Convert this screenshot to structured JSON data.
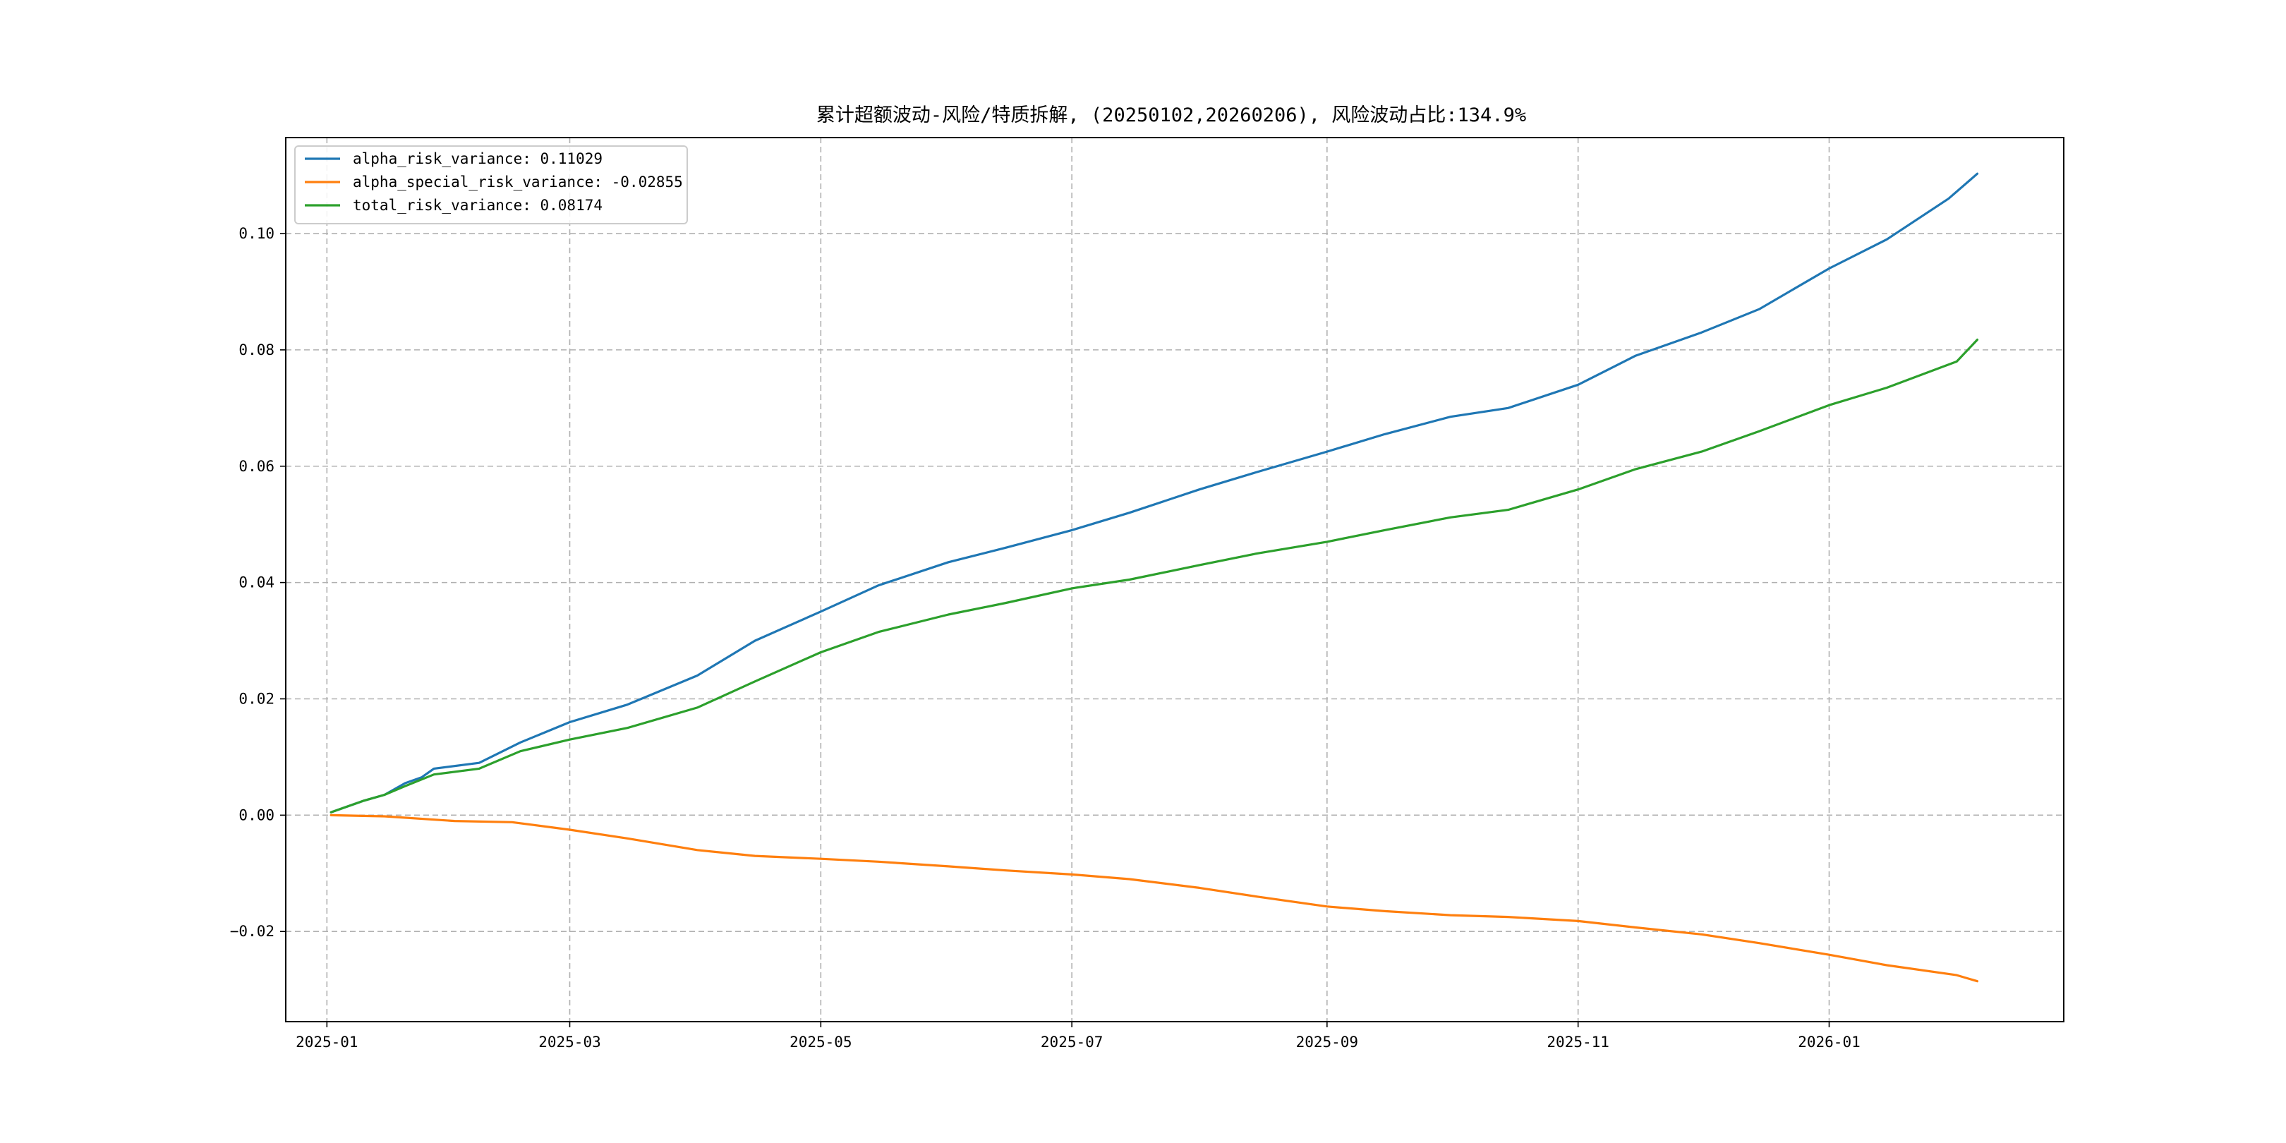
{
  "chart_data": {
    "type": "line",
    "title": "累计超额波动-风险/特质拆解, (20250102,20260206), 风险波动占比:134.9%",
    "xlabel": "",
    "ylabel": "",
    "x_range": [
      "2024-12-22",
      "2026-02-27"
    ],
    "ylim": [
      -0.0355,
      0.1165
    ],
    "grid": true,
    "grid_style": "dashed",
    "legend_position": "upper-left",
    "x_tick_labels": [
      "2025-01",
      "2025-03",
      "2025-05",
      "2025-07",
      "2025-09",
      "2025-11",
      "2026-01"
    ],
    "x_tick_dates": [
      "2025-01-01",
      "2025-03-01",
      "2025-05-01",
      "2025-07-01",
      "2025-09-01",
      "2025-11-01",
      "2026-01-01"
    ],
    "y_ticks": [
      -0.02,
      0.0,
      0.02,
      0.04,
      0.06,
      0.08,
      0.1
    ],
    "y_tick_labels": [
      "−0.02",
      "0.00",
      "0.02",
      "0.04",
      "0.06",
      "0.08",
      "0.10"
    ],
    "series": [
      {
        "name": "alpha_risk_variance",
        "legend_label": "alpha_risk_variance: 0.11029",
        "color": "#1f77b4",
        "points": [
          [
            "2025-01-02",
            0.0005
          ],
          [
            "2025-01-10",
            0.0025
          ],
          [
            "2025-01-15",
            0.0035
          ],
          [
            "2025-01-20",
            0.0055
          ],
          [
            "2025-01-24",
            0.0065
          ],
          [
            "2025-01-27",
            0.008
          ],
          [
            "2025-02-07",
            0.009
          ],
          [
            "2025-02-17",
            0.0125
          ],
          [
            "2025-03-01",
            0.016
          ],
          [
            "2025-03-15",
            0.019
          ],
          [
            "2025-04-01",
            0.024
          ],
          [
            "2025-04-15",
            0.03
          ],
          [
            "2025-05-01",
            0.035
          ],
          [
            "2025-05-15",
            0.0395
          ],
          [
            "2025-06-01",
            0.0435
          ],
          [
            "2025-06-15",
            0.046
          ],
          [
            "2025-07-01",
            0.049
          ],
          [
            "2025-07-15",
            0.052
          ],
          [
            "2025-08-01",
            0.056
          ],
          [
            "2025-08-15",
            0.059
          ],
          [
            "2025-09-01",
            0.0625
          ],
          [
            "2025-09-15",
            0.0655
          ],
          [
            "2025-10-01",
            0.0685
          ],
          [
            "2025-10-15",
            0.07
          ],
          [
            "2025-11-01",
            0.074
          ],
          [
            "2025-11-15",
            0.079
          ],
          [
            "2025-12-01",
            0.083
          ],
          [
            "2025-12-15",
            0.087
          ],
          [
            "2026-01-01",
            0.094
          ],
          [
            "2026-01-15",
            0.099
          ],
          [
            "2026-01-30",
            0.106
          ],
          [
            "2026-02-06",
            0.11029
          ]
        ]
      },
      {
        "name": "alpha_special_risk_variance",
        "legend_label": "alpha_special_risk_variance: -0.02855",
        "color": "#ff7f0e",
        "points": [
          [
            "2025-01-02",
            0.0
          ],
          [
            "2025-01-15",
            -0.0002
          ],
          [
            "2025-02-01",
            -0.001
          ],
          [
            "2025-02-15",
            -0.0012
          ],
          [
            "2025-03-01",
            -0.0025
          ],
          [
            "2025-03-15",
            -0.004
          ],
          [
            "2025-04-01",
            -0.006
          ],
          [
            "2025-04-15",
            -0.007
          ],
          [
            "2025-05-01",
            -0.0075
          ],
          [
            "2025-05-15",
            -0.008
          ],
          [
            "2025-06-01",
            -0.0088
          ],
          [
            "2025-06-15",
            -0.0095
          ],
          [
            "2025-07-01",
            -0.0102
          ],
          [
            "2025-07-15",
            -0.011
          ],
          [
            "2025-08-01",
            -0.0125
          ],
          [
            "2025-08-15",
            -0.014
          ],
          [
            "2025-09-01",
            -0.0157
          ],
          [
            "2025-09-15",
            -0.0165
          ],
          [
            "2025-10-01",
            -0.0172
          ],
          [
            "2025-10-15",
            -0.0175
          ],
          [
            "2025-11-01",
            -0.0182
          ],
          [
            "2025-11-15",
            -0.0193
          ],
          [
            "2025-12-01",
            -0.0205
          ],
          [
            "2025-12-15",
            -0.022
          ],
          [
            "2026-01-01",
            -0.024
          ],
          [
            "2026-01-15",
            -0.0258
          ],
          [
            "2026-02-01",
            -0.0275
          ],
          [
            "2026-02-06",
            -0.02855
          ]
        ]
      },
      {
        "name": "total_risk_variance",
        "legend_label": "total_risk_variance: 0.08174",
        "color": "#2ca02c",
        "points": [
          [
            "2025-01-02",
            0.0005
          ],
          [
            "2025-01-10",
            0.0025
          ],
          [
            "2025-01-15",
            0.0035
          ],
          [
            "2025-01-20",
            0.005
          ],
          [
            "2025-01-27",
            0.007
          ],
          [
            "2025-02-07",
            0.008
          ],
          [
            "2025-02-17",
            0.011
          ],
          [
            "2025-03-01",
            0.013
          ],
          [
            "2025-03-15",
            0.015
          ],
          [
            "2025-04-01",
            0.0185
          ],
          [
            "2025-04-15",
            0.023
          ],
          [
            "2025-05-01",
            0.028
          ],
          [
            "2025-05-15",
            0.0315
          ],
          [
            "2025-06-01",
            0.0345
          ],
          [
            "2025-06-15",
            0.0365
          ],
          [
            "2025-07-01",
            0.039
          ],
          [
            "2025-07-15",
            0.0405
          ],
          [
            "2025-08-01",
            0.043
          ],
          [
            "2025-08-15",
            0.045
          ],
          [
            "2025-09-01",
            0.047
          ],
          [
            "2025-09-15",
            0.049
          ],
          [
            "2025-10-01",
            0.0512
          ],
          [
            "2025-10-15",
            0.0525
          ],
          [
            "2025-11-01",
            0.056
          ],
          [
            "2025-11-15",
            0.0595
          ],
          [
            "2025-12-01",
            0.0625
          ],
          [
            "2025-12-15",
            0.066
          ],
          [
            "2026-01-01",
            0.0705
          ],
          [
            "2026-01-15",
            0.0735
          ],
          [
            "2026-02-01",
            0.078
          ],
          [
            "2026-02-06",
            0.08174
          ]
        ]
      }
    ]
  }
}
